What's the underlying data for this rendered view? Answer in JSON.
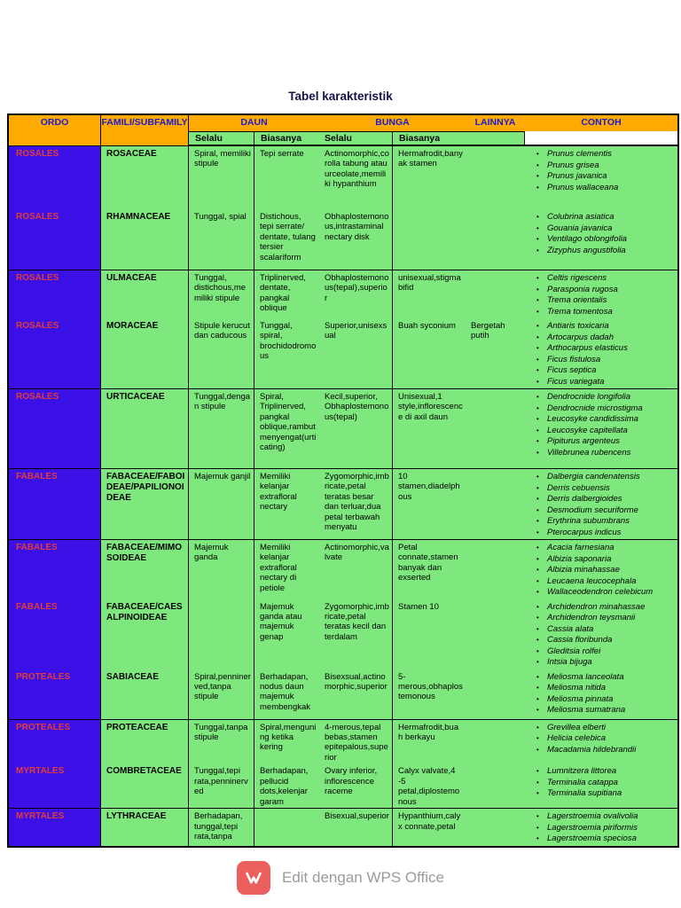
{
  "title": "Tabel karakteristik",
  "header": {
    "ordo": "ORDO",
    "famili": "FAMILI/SUBFAMILY",
    "daun": "DAUN",
    "bunga": "BUNGA",
    "lainnya": "LAINNYA",
    "contoh": "CONTOH",
    "sub": {
      "daun_selalu": "Selalu",
      "daun_biasanya": "Biasanya",
      "bunga_selalu": "Selalu",
      "bunga_biasanya": "Biasanya"
    }
  },
  "colors": {
    "header_bg": "#FFAA00",
    "header_text": "#1B1BD1",
    "ordo_bg": "#3B10E6",
    "ordo_text": "#E23B3B",
    "cell_bg": "#7EE87E",
    "logo_bg": "#EC5F5F",
    "footer_text": "#9B9B9B",
    "title_text": "#13134A"
  },
  "families": [
    {
      "ordo": "ROSALES",
      "name": "ROSACEAE",
      "daun_selalu": "Spiral, memiliki stipule",
      "daun_biasanya": "Tepi serrate",
      "bunga_selalu": "Actinomorphic,corolla tabung atau urceolate,memiliki hypanthium",
      "bunga_biasanya": "Hermafrodit,banyak stamen",
      "lainnya": "",
      "contoh": [
        "Prunus clementis",
        "Prunus grisea",
        "Prunus javanica",
        "Prunus wallaceana"
      ]
    },
    {
      "ordo": "ROSALES",
      "name": "RHAMNACEAE",
      "daun_selalu": "Tunggal, spial",
      "daun_biasanya": "Distichous, tepi serrate/ dentate, tulang tersier scalariform",
      "bunga_selalu": "Obhaplostemonous,intrastaminal nectary disk",
      "bunga_biasanya": "",
      "lainnya": "",
      "contoh": [
        "Colubrina asiatica",
        "Gouania javanica",
        "Ventilago oblongifolia",
        "Zizyphus angustifolia"
      ]
    },
    {
      "ordo": "ROSALES",
      "name": "ULMACEAE",
      "daun_selalu": "Tunggal, distichous,memiliki stipule",
      "daun_biasanya": "Triplinerved, dentate, pangkal oblique",
      "bunga_selalu": "Obhaplostemonous(tepal),superior",
      "bunga_biasanya": "unisexual,stigma bifid",
      "lainnya": "",
      "contoh": [
        "Celtis rigescens",
        "Parasponia rugosa",
        "Trema orientalis",
        "Trema tomentosa"
      ]
    },
    {
      "ordo": "ROSALES",
      "name": "MORACEAE",
      "daun_selalu": "Stipule kerucut dan caducous",
      "daun_biasanya": "Tunggal, spiral, brochidodromous",
      "bunga_selalu": "Superior,unisexsual",
      "bunga_biasanya": "Buah syconium",
      "lainnya": "Bergetah putih",
      "contoh": [
        "Antiaris toxicaria",
        "Artocarpus dadah",
        "Arthocarpus elasticus",
        "Ficus fistulosa",
        "Ficus septica",
        "Ficus variegata"
      ]
    },
    {
      "ordo": "ROSALES",
      "name": "URTICACEAE",
      "daun_selalu": "Tunggal,dengan stipule",
      "daun_biasanya": "Spiral, Triplinerved, pangkal oblique,rambut menyengat(urticating)",
      "bunga_selalu": "Kecil,superior, Obhaplostemonous(tepal)",
      "bunga_biasanya": "Unisexual,1 style,inflorescence di axil daun",
      "lainnya": "",
      "contoh": [
        "Dendrocnide longifolia",
        "Dendrocnide microstigma",
        "Leucosyke candidissima",
        "Leucosyke capitellata",
        "Pipiturus argenteus",
        "Villebrunea rubencens"
      ]
    },
    {
      "ordo": "FABALES",
      "name": "FABACEAE/FABOIDEAE/PAPILIONOIDEAE",
      "daun_selalu": "Majemuk ganjil",
      "daun_biasanya": "Memiliki kelanjar extrafloral nectary",
      "bunga_selalu": "Zygomorphic,imbricate,petal teratas besar dan terluar,dua petal terbawah menyatu",
      "bunga_biasanya": "10 stamen,diadelphous",
      "lainnya": "",
      "contoh": [
        "Dalbergia candenatensis",
        "Derris cebuensis",
        "Derris dalbergioides",
        "Desmodium securiforme",
        "Erythrina subumbrans",
        "Pterocarpus indicus"
      ]
    },
    {
      "ordo": "FABALES",
      "name": "FABACEAE/MIMOSOIDEAE",
      "daun_selalu": "Majemuk ganda",
      "daun_biasanya": "Memiliki kelanjar extrafloral nectary di petiole",
      "bunga_selalu": "Actinomorphic,valvate",
      "bunga_biasanya": "Petal connate,stamen banyak dan exserted",
      "lainnya": "",
      "contoh": [
        "Acacia farnesiana",
        "Albizia saponaria",
        "Albizia minahassae",
        "Leucaena leucocephala",
        "Wallaceodendron celebicum"
      ]
    },
    {
      "ordo": "FABALES",
      "name": "FABACEAE/CAESALPINOIDEAE",
      "daun_selalu": "",
      "daun_biasanya": "Majemuk ganda atau majemuk genap",
      "bunga_selalu": "Zygomorphic,imbricate,petal teratas kecil dan terdalam",
      "bunga_biasanya": "Stamen 10",
      "lainnya": "",
      "contoh": [
        "Archidendron minahassae",
        "Archidendron teysmanii",
        "Cassia alata",
        "Cassia floribunda",
        "Gleditsia rolfei",
        "Intsia bijuga"
      ]
    },
    {
      "ordo": "PROTEALES",
      "name": "SABIACEAE",
      "daun_selalu": "Spiral,penninerved,tanpa stipule",
      "daun_biasanya": "Berhadapan, nodus daun majemuk membengkak",
      "bunga_selalu": "Bisexsual,actinomorphic,superior",
      "bunga_biasanya": "5-merous,obhaplostemonous",
      "lainnya": "",
      "contoh": [
        "Meliosma lanceolata",
        "Meliosma nitida",
        "Meliosma pinnata",
        "Meliosma sumatrana"
      ]
    },
    {
      "ordo": "PROTEALES",
      "name": "PROTEACEAE",
      "daun_selalu": "Tunggal,tanpa stipule",
      "daun_biasanya": "Spiral,menguning ketika kering",
      "bunga_selalu": "4-merous,tepal bebas,stamen epitepalous,superior",
      "bunga_biasanya": "Hermafrodit,buah berkayu",
      "lainnya": "",
      "contoh": [
        "Grevillea elberti",
        "Helicia celebica",
        "Macadamia hildebrandii"
      ]
    },
    {
      "ordo": "MYRTALES",
      "name": "COMBRETACEAE",
      "daun_selalu": "Tunggal,tepi rata,penninerved",
      "daun_biasanya": "Berhadapan, pellucid dots,kelenjar garam",
      "bunga_selalu": "Ovary inferior, inflorescence raceme",
      "bunga_biasanya": "Calyx valvate,4 -5 petal,diplostemonous",
      "lainnya": "",
      "contoh": [
        "Lumnitzera littorea",
        "Terminalia catappa",
        "Terminalia supitiana"
      ]
    },
    {
      "ordo": "MYRTALES",
      "name": "LYTHRACEAE",
      "daun_selalu": "Berhadapan, tunggal,tepi rata,tanpa",
      "daun_biasanya": "",
      "bunga_selalu": "Bisexual,superior",
      "bunga_biasanya": "Hypanthium,calyx connate,petal",
      "lainnya": "",
      "contoh": [
        "Lagerstroemia ovalivolia",
        "Lagerstroemia piriformis",
        "Lagerstroemia speciosa"
      ]
    }
  ],
  "footer": {
    "label": "Edit dengan WPS Office",
    "logo": "wps-logo"
  }
}
